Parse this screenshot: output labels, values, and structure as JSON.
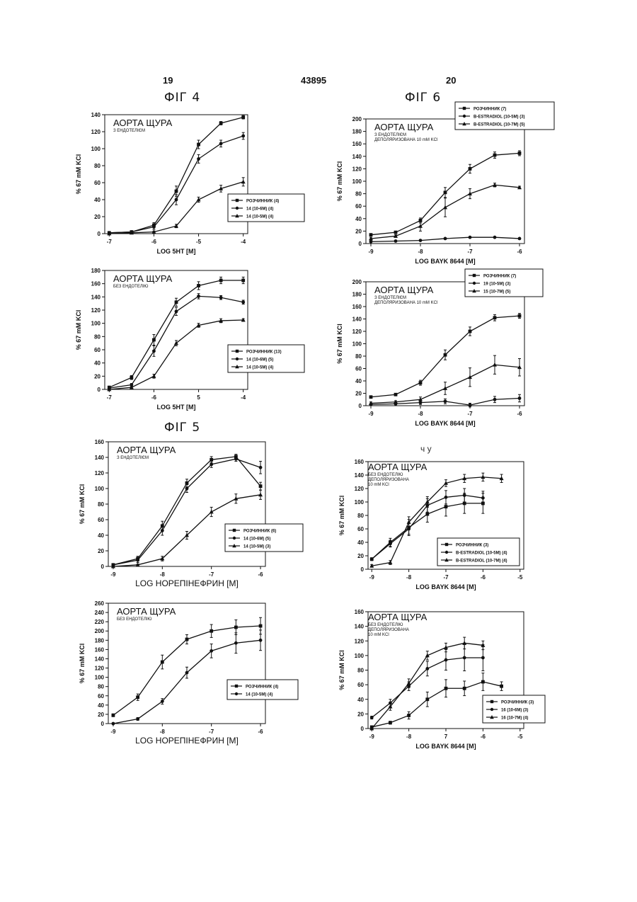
{
  "header": {
    "left_page": "19",
    "patent_number": "43895",
    "right_page": "20"
  },
  "figure_labels": {
    "fig4": "ФІГ 4",
    "fig5": "ФІГ 5",
    "fig6": "ФІГ 6"
  },
  "stray_mark": "ч  у",
  "chart_data": [
    {
      "id": "c1",
      "type": "line",
      "title": "АОРТА ЩУРА",
      "subtitle": [
        "З ЕНДОТЕЛІЄМ"
      ],
      "xlabel": "LOG 5HT [M]",
      "ylabel": "% 67 mM KCl",
      "xlim": [
        -7.1,
        -3.9
      ],
      "ylim": [
        0,
        140
      ],
      "xticks": [
        -7,
        -6,
        -5,
        -4
      ],
      "xtick_labels": [
        "-7",
        "-6",
        "-5",
        "-4"
      ],
      "yticks": [
        0,
        20,
        40,
        60,
        80,
        100,
        120,
        140
      ],
      "legend": [
        {
          "label": "РОЗЧИННИК (4)",
          "marker": "square"
        },
        {
          "label": "14 (10-6M) (4)",
          "marker": "circle"
        },
        {
          "label": "14 (10-5M) (4)",
          "marker": "triangle"
        }
      ],
      "series": [
        {
          "marker": "square",
          "x": [
            -7,
            -6.5,
            -6,
            -5.5,
            -5,
            -4.5,
            -4
          ],
          "y": [
            1,
            2,
            10,
            50,
            105,
            130,
            137
          ],
          "err": [
            1,
            1,
            3,
            6,
            5,
            2,
            2
          ]
        },
        {
          "marker": "circle",
          "x": [
            -7,
            -6.5,
            -6,
            -5.5,
            -5,
            -4.5,
            -4
          ],
          "y": [
            1,
            2,
            8,
            40,
            88,
            106,
            115
          ],
          "err": [
            1,
            1,
            3,
            6,
            5,
            4,
            4
          ]
        },
        {
          "marker": "triangle",
          "x": [
            -7,
            -6.5,
            -6,
            -5.5,
            -5,
            -4.5,
            -4
          ],
          "y": [
            0,
            1,
            2,
            9,
            40,
            53,
            61
          ],
          "err": [
            1,
            1,
            1,
            2,
            3,
            4,
            5
          ]
        }
      ]
    },
    {
      "id": "c2",
      "type": "line",
      "title": "АОРТА ЩУРА",
      "subtitle": [
        "БЕЗ ЕНДОТЕЛІЮ"
      ],
      "xlabel": "LOG 5HT [M]",
      "ylabel": "% 67 mM KCl",
      "xlim": [
        -7.1,
        -3.9
      ],
      "ylim": [
        0,
        180
      ],
      "xticks": [
        -7,
        -6,
        -5,
        -4
      ],
      "xtick_labels": [
        "-7",
        "-6",
        "5",
        "-4"
      ],
      "yticks": [
        0,
        20,
        40,
        60,
        80,
        100,
        120,
        140,
        160,
        180
      ],
      "legend": [
        {
          "label": "РОЗЧИННИК (13)",
          "marker": "square"
        },
        {
          "label": "14 (10-6M) (5)",
          "marker": "circle"
        },
        {
          "label": "14 (10-5M) (4)",
          "marker": "triangle"
        }
      ],
      "series": [
        {
          "marker": "square",
          "x": [
            -7,
            -6.5,
            -6,
            -5.5,
            -5,
            -4.5,
            -4
          ],
          "y": [
            3,
            18,
            75,
            132,
            157,
            165,
            165
          ],
          "err": [
            2,
            3,
            8,
            6,
            6,
            5,
            5
          ]
        },
        {
          "marker": "circle",
          "x": [
            -7,
            -6.5,
            -6,
            -5.5,
            -5,
            -4.5,
            -4
          ],
          "y": [
            2,
            7,
            58,
            118,
            141,
            139,
            132
          ],
          "err": [
            1,
            2,
            8,
            6,
            4,
            3,
            3
          ]
        },
        {
          "marker": "triangle",
          "x": [
            -7,
            -6.5,
            -6,
            -5.5,
            -5,
            -4.5,
            -4
          ],
          "y": [
            0,
            3,
            20,
            70,
            97,
            104,
            105
          ],
          "err": [
            1,
            1,
            3,
            4,
            3,
            3,
            2
          ]
        }
      ]
    },
    {
      "id": "c3",
      "type": "line",
      "title": "АОРТА ЩУРА",
      "subtitle": [
        "З ЕНДОТЕЛІЄМ"
      ],
      "xlabel": "LOG НОРЕПІНЕФРИН [M]",
      "ylabel": "% 67 mM KCl",
      "xlim": [
        -9.1,
        -5.9
      ],
      "ylim": [
        0,
        160
      ],
      "xticks": [
        -9,
        -8,
        -7,
        -6
      ],
      "xtick_labels": [
        "-9",
        "-8",
        "-7",
        "-6"
      ],
      "yticks": [
        0,
        20,
        40,
        60,
        80,
        100,
        120,
        140,
        160
      ],
      "legend": [
        {
          "label": "РОЗЧИННИК (6)",
          "marker": "square"
        },
        {
          "label": "14 (10-6M) (5)",
          "marker": "circle"
        },
        {
          "label": "14 (10-5M) (3)",
          "marker": "triangle"
        }
      ],
      "series": [
        {
          "marker": "square",
          "x": [
            -9,
            -8.5,
            -8,
            -7.5,
            -7,
            -6.5,
            -6
          ],
          "y": [
            2,
            10,
            52,
            107,
            137,
            141,
            103
          ],
          "err": [
            1,
            3,
            6,
            5,
            4,
            3,
            5
          ]
        },
        {
          "marker": "circle",
          "x": [
            -9,
            -8.5,
            -8,
            -7.5,
            -7,
            -6.5,
            -6
          ],
          "y": [
            2,
            8,
            46,
            100,
            131,
            138,
            127
          ],
          "err": [
            1,
            3,
            6,
            5,
            4,
            3,
            8
          ]
        },
        {
          "marker": "triangle",
          "x": [
            -9,
            -8.5,
            -8,
            -7.5,
            -7,
            -6.5,
            -6
          ],
          "y": [
            0,
            2,
            10,
            40,
            70,
            87,
            92
          ],
          "err": [
            1,
            1,
            3,
            5,
            6,
            6,
            6
          ]
        }
      ]
    },
    {
      "id": "c4",
      "type": "line",
      "title": "АОРТА ЩУРА",
      "subtitle": [
        "БЕЗ ЕНДОТЕЛІЮ"
      ],
      "xlabel": "LOG НОРЕПІНЕФРИН [M]",
      "ylabel": "% 67 mM KCl",
      "xlim": [
        -9.1,
        -5.9
      ],
      "ylim": [
        0,
        260
      ],
      "xticks": [
        -9,
        -8,
        -7,
        -6
      ],
      "xtick_labels": [
        "-9",
        "-8",
        "-7",
        "-6"
      ],
      "yticks": [
        0,
        20,
        40,
        60,
        80,
        100,
        120,
        140,
        160,
        180,
        200,
        220,
        240,
        260
      ],
      "legend": [
        {
          "label": "РОЗЧИННИК (4)",
          "marker": "square"
        },
        {
          "label": "14 (10-5M) (4)",
          "marker": "circle"
        }
      ],
      "series": [
        {
          "marker": "square",
          "x": [
            -9,
            -8.5,
            -8,
            -7.5,
            -7,
            -6.5,
            -6
          ],
          "y": [
            18,
            57,
            133,
            182,
            200,
            208,
            211
          ],
          "err": [
            3,
            7,
            15,
            10,
            14,
            16,
            18
          ]
        },
        {
          "marker": "circle",
          "x": [
            -9,
            -8.5,
            -8,
            -7.5,
            -7,
            -6.5,
            -6
          ],
          "y": [
            0,
            10,
            48,
            110,
            157,
            174,
            180
          ],
          "err": [
            1,
            3,
            6,
            12,
            15,
            22,
            22
          ]
        }
      ]
    },
    {
      "id": "c5",
      "type": "line",
      "title": "АОРТА ЩУРА",
      "subtitle": [
        "З ЕНДОТЕЛІЄМ",
        "ДЕПОЛЯРИЗОВАНА 10 mM KCl"
      ],
      "xlabel": "LOG BAYK 8644 [M]",
      "ylabel": "% 67 mM KCl",
      "xlim": [
        -9.1,
        -5.9
      ],
      "ylim": [
        0,
        200
      ],
      "xticks": [
        -9,
        -8,
        -7,
        -6
      ],
      "xtick_labels": [
        "-9",
        "-8",
        "-7",
        "-6"
      ],
      "yticks": [
        0,
        20,
        40,
        60,
        80,
        100,
        120,
        140,
        160,
        180,
        200
      ],
      "legend_position": "outside-top-right",
      "legend": [
        {
          "label": "РОЗЧИННИК (7)",
          "marker": "square"
        },
        {
          "label": "В-ESTRADIOL (10-5M) (3)",
          "marker": "circle"
        },
        {
          "label": "В-ESTRADIOL (10-7M) (5)",
          "marker": "triangle"
        }
      ],
      "series": [
        {
          "marker": "square",
          "x": [
            -9,
            -8.5,
            -8,
            -7.5,
            -7,
            -6.5,
            -6
          ],
          "y": [
            14,
            18,
            37,
            82,
            120,
            142,
            145
          ],
          "err": [
            2,
            2,
            4,
            8,
            7,
            5,
            4
          ]
        },
        {
          "marker": "circle",
          "x": [
            -9,
            -8.5,
            -8,
            -7.5,
            -7,
            -6.5,
            -6
          ],
          "y": [
            3,
            4,
            5,
            8,
            10,
            10,
            8
          ],
          "err": [
            1,
            1,
            1,
            1,
            1,
            1,
            1
          ]
        },
        {
          "marker": "triangle",
          "x": [
            -9,
            -8.5,
            -8,
            -7.5,
            -7,
            -6.5,
            -6
          ],
          "y": [
            8,
            12,
            28,
            58,
            80,
            94,
            90
          ],
          "err": [
            2,
            2,
            8,
            15,
            8,
            3,
            2
          ]
        }
      ]
    },
    {
      "id": "c6",
      "type": "line",
      "title": "АОРТА ЩУРА",
      "subtitle": [
        "З ЕНДОТЕЛІЄМ",
        "ДЕПОЛЯРИЗОВАНА 10 mM KCl"
      ],
      "xlabel": "LOG BAYK 8644 [M]",
      "ylabel": "% 67 mM KCl",
      "xlim": [
        -9.1,
        -5.9
      ],
      "ylim": [
        0,
        200
      ],
      "xticks": [
        -9,
        -8,
        -7,
        -6
      ],
      "xtick_labels": [
        "-9",
        "-8",
        "-7",
        "-6"
      ],
      "yticks": [
        0,
        20,
        40,
        60,
        80,
        100,
        120,
        140,
        160,
        180,
        200
      ],
      "legend_position": "outside-top-right",
      "legend": [
        {
          "label": "РОЗЧИННИК (7)",
          "marker": "square"
        },
        {
          "label": "19 (10-5M) (3)",
          "marker": "circle"
        },
        {
          "label": "15 (10-7M) (5)",
          "marker": "triangle"
        }
      ],
      "series": [
        {
          "marker": "square",
          "x": [
            -9,
            -8.5,
            -8,
            -7.5,
            -7,
            -6.5,
            -6
          ],
          "y": [
            14,
            18,
            37,
            82,
            120,
            142,
            145
          ],
          "err": [
            2,
            2,
            4,
            8,
            7,
            5,
            4
          ]
        },
        {
          "marker": "circle",
          "x": [
            -9,
            -8.5,
            -8,
            -7.5,
            -7,
            -6.5,
            -6
          ],
          "y": [
            2,
            3,
            5,
            7,
            1,
            10,
            12
          ],
          "err": [
            1,
            1,
            3,
            4,
            3,
            5,
            6
          ]
        },
        {
          "marker": "triangle",
          "x": [
            -9,
            -8.5,
            -8,
            -7.5,
            -7,
            -6.5,
            -6
          ],
          "y": [
            4,
            6,
            10,
            28,
            46,
            66,
            62
          ],
          "err": [
            2,
            2,
            4,
            10,
            15,
            15,
            14
          ]
        }
      ]
    },
    {
      "id": "c7",
      "type": "line",
      "title": "АОРТА ЩУРА",
      "subtitle": [
        "БЕЗ ЕНДОТЕЛІЮ",
        "ДЕПОЛЯРИЗОВАНА",
        "10 mM KCl"
      ],
      "xlabel": "LOG BAYK 8644 [M]",
      "ylabel": "% 67 mM KCl",
      "xlim": [
        -9.1,
        -4.9
      ],
      "ylim": [
        0,
        160
      ],
      "xticks": [
        -9,
        -8,
        -7,
        -6,
        -5
      ],
      "xtick_labels": [
        "-9",
        "-8",
        "-7",
        "-6",
        "-5"
      ],
      "yticks": [
        0,
        20,
        40,
        60,
        80,
        100,
        120,
        140,
        160
      ],
      "legend": [
        {
          "label": "РОЗЧИННИК (3)",
          "marker": "square"
        },
        {
          "label": "В-ESTRADIOL (10-5M) (4)",
          "marker": "circle"
        },
        {
          "label": "В-ESTRADIOL (10-7M) (4)",
          "marker": "triangle"
        }
      ],
      "series": [
        {
          "marker": "square",
          "x": [
            -9,
            -8.5,
            -8,
            -7.5,
            -7,
            -6.5,
            -6
          ],
          "y": [
            15,
            40,
            62,
            82,
            93,
            98,
            98
          ],
          "err": [
            2,
            6,
            12,
            12,
            14,
            15,
            15
          ]
        },
        {
          "marker": "circle",
          "x": [
            -9,
            -8.5,
            -8,
            -7.5,
            -7,
            -6.5,
            -6
          ],
          "y": [
            15,
            38,
            60,
            95,
            107,
            110,
            106
          ],
          "err": [
            2,
            5,
            8,
            10,
            10,
            10,
            10
          ]
        },
        {
          "marker": "triangle",
          "x": [
            -9,
            -8.5,
            -8,
            -7.5,
            -7,
            -6.5,
            -6,
            -5.5
          ],
          "y": [
            5,
            10,
            70,
            100,
            128,
            135,
            137,
            135
          ],
          "err": [
            2,
            3,
            8,
            8,
            5,
            6,
            6,
            6
          ]
        }
      ]
    },
    {
      "id": "c8",
      "type": "line",
      "title": "АОРТА ЩУРА",
      "subtitle": [
        "БЕЗ ЕНДОТЕЛІЮ",
        "ДЕПОЛЯРИЗОВАНА",
        "10 mM KCl"
      ],
      "xlabel": "LOG BAYK 8644 [M]",
      "ylabel": "% 67 mM KCl",
      "xlim": [
        -9.1,
        -4.9
      ],
      "ylim": [
        0,
        160
      ],
      "xticks": [
        -9,
        -8,
        -7,
        -6,
        -5
      ],
      "xtick_labels": [
        "-9",
        "-8",
        "7",
        "-6",
        "-5"
      ],
      "yticks": [
        0,
        20,
        40,
        60,
        80,
        100,
        120,
        140,
        160
      ],
      "legend": [
        {
          "label": "РОЗЧИННИК (3)",
          "marker": "square"
        },
        {
          "label": "16 (10-6M) (3)",
          "marker": "circle"
        },
        {
          "label": "16 (10-7M) (4)",
          "marker": "triangle"
        }
      ],
      "series": [
        {
          "marker": "square",
          "x": [
            -9,
            -8.5,
            -8,
            -7.5,
            -7,
            -6.5,
            -6,
            -5.5
          ],
          "y": [
            2,
            8,
            18,
            40,
            55,
            55,
            64,
            58
          ],
          "err": [
            1,
            2,
            5,
            10,
            12,
            10,
            12,
            6
          ]
        },
        {
          "marker": "circle",
          "x": [
            -9,
            -8.5,
            -8,
            -7.5,
            -7,
            -6.5,
            -6
          ],
          "y": [
            15,
            35,
            58,
            82,
            94,
            97,
            97
          ],
          "err": [
            2,
            5,
            6,
            10,
            14,
            18,
            18
          ]
        },
        {
          "marker": "triangle",
          "x": [
            -9,
            -8.5,
            -8,
            -7.5,
            -7,
            -6.5,
            -6
          ],
          "y": [
            0,
            30,
            62,
            100,
            111,
            117,
            114
          ],
          "err": [
            1,
            5,
            6,
            6,
            6,
            8,
            6
          ]
        }
      ]
    }
  ]
}
